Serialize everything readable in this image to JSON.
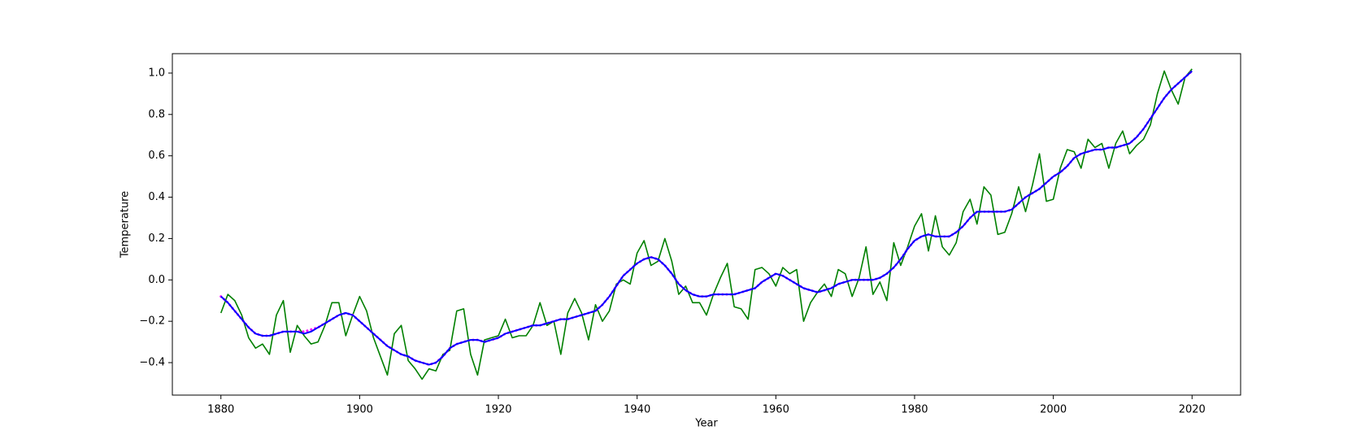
{
  "chart_data": {
    "type": "line",
    "xlabel": "Year",
    "ylabel": "Temperature",
    "x": [
      1880,
      1881,
      1882,
      1883,
      1884,
      1885,
      1886,
      1887,
      1888,
      1889,
      1890,
      1891,
      1892,
      1893,
      1894,
      1895,
      1896,
      1897,
      1898,
      1899,
      1900,
      1901,
      1902,
      1903,
      1904,
      1905,
      1906,
      1907,
      1908,
      1909,
      1910,
      1911,
      1912,
      1913,
      1914,
      1915,
      1916,
      1917,
      1918,
      1919,
      1920,
      1921,
      1922,
      1923,
      1924,
      1925,
      1926,
      1927,
      1928,
      1929,
      1930,
      1931,
      1932,
      1933,
      1934,
      1935,
      1936,
      1937,
      1938,
      1939,
      1940,
      1941,
      1942,
      1943,
      1944,
      1945,
      1946,
      1947,
      1948,
      1949,
      1950,
      1951,
      1952,
      1953,
      1954,
      1955,
      1956,
      1957,
      1958,
      1959,
      1960,
      1961,
      1962,
      1963,
      1964,
      1965,
      1966,
      1967,
      1968,
      1969,
      1970,
      1971,
      1972,
      1973,
      1974,
      1975,
      1976,
      1977,
      1978,
      1979,
      1980,
      1981,
      1982,
      1983,
      1984,
      1985,
      1986,
      1987,
      1988,
      1989,
      1990,
      1991,
      1992,
      1993,
      1994,
      1995,
      1996,
      1997,
      1998,
      1999,
      2000,
      2001,
      2002,
      2003,
      2004,
      2005,
      2006,
      2007,
      2008,
      2009,
      2010,
      2011,
      2012,
      2013,
      2014,
      2015,
      2016,
      2017,
      2018,
      2019,
      2020
    ],
    "series": [
      {
        "color": "#008000",
        "style": "solid",
        "values": [
          -0.16,
          -0.07,
          -0.1,
          -0.17,
          -0.28,
          -0.33,
          -0.31,
          -0.36,
          -0.17,
          -0.1,
          -0.35,
          -0.22,
          -0.27,
          -0.31,
          -0.3,
          -0.22,
          -0.11,
          -0.11,
          -0.27,
          -0.17,
          -0.08,
          -0.15,
          -0.28,
          -0.37,
          -0.46,
          -0.26,
          -0.22,
          -0.39,
          -0.43,
          -0.48,
          -0.43,
          -0.44,
          -0.36,
          -0.34,
          -0.15,
          -0.14,
          -0.36,
          -0.46,
          -0.29,
          -0.28,
          -0.27,
          -0.19,
          -0.28,
          -0.27,
          -0.27,
          -0.22,
          -0.11,
          -0.22,
          -0.2,
          -0.36,
          -0.16,
          -0.09,
          -0.16,
          -0.29,
          -0.12,
          -0.2,
          -0.15,
          -0.02,
          0.0,
          -0.02,
          0.13,
          0.19,
          0.07,
          0.09,
          0.2,
          0.09,
          -0.07,
          -0.03,
          -0.11,
          -0.11,
          -0.17,
          -0.07,
          0.01,
          0.08,
          -0.13,
          -0.14,
          -0.19,
          0.05,
          0.06,
          0.03,
          -0.03,
          0.06,
          0.03,
          0.05,
          -0.2,
          -0.11,
          -0.06,
          -0.02,
          -0.08,
          0.05,
          0.03,
          -0.08,
          0.01,
          0.16,
          -0.07,
          -0.01,
          -0.1,
          0.18,
          0.07,
          0.16,
          0.26,
          0.32,
          0.14,
          0.31,
          0.16,
          0.12,
          0.18,
          0.33,
          0.39,
          0.27,
          0.45,
          0.41,
          0.22,
          0.23,
          0.32,
          0.45,
          0.33,
          0.46,
          0.61,
          0.38,
          0.39,
          0.54,
          0.63,
          0.62,
          0.54,
          0.68,
          0.64,
          0.66,
          0.54,
          0.66,
          0.72,
          0.61,
          0.65,
          0.68,
          0.75,
          0.9,
          1.01,
          0.92,
          0.85,
          0.98,
          1.02
        ]
      },
      {
        "color": "#ff00ff",
        "style": "dotted",
        "values": [
          -0.08,
          -0.11,
          -0.15,
          -0.19,
          -0.23,
          -0.26,
          -0.27,
          -0.27,
          -0.26,
          -0.25,
          -0.25,
          -0.25,
          -0.25,
          -0.24,
          -0.23,
          -0.21,
          -0.19,
          -0.17,
          -0.16,
          -0.17,
          -0.2,
          -0.23,
          -0.26,
          -0.29,
          -0.32,
          -0.34,
          -0.36,
          -0.37,
          -0.39,
          -0.4,
          -0.41,
          -0.4,
          -0.37,
          -0.33,
          -0.31,
          -0.3,
          -0.29,
          -0.29,
          -0.3,
          -0.29,
          -0.28,
          -0.26,
          -0.25,
          -0.24,
          -0.23,
          -0.22,
          -0.22,
          -0.21,
          -0.2,
          -0.19,
          -0.19,
          -0.18,
          -0.17,
          -0.16,
          -0.15,
          -0.12,
          -0.08,
          -0.03,
          0.02,
          0.05,
          0.08,
          0.1,
          0.11,
          0.1,
          0.07,
          0.03,
          -0.02,
          -0.05,
          -0.07,
          -0.08,
          -0.08,
          -0.07,
          -0.07,
          -0.07,
          -0.07,
          -0.06,
          -0.05,
          -0.04,
          -0.01,
          0.01,
          0.03,
          0.02,
          0.0,
          -0.02,
          -0.04,
          -0.05,
          -0.06,
          -0.05,
          -0.04,
          -0.02,
          -0.01,
          0.0,
          0.0,
          0.0,
          0.0,
          0.01,
          0.03,
          0.06,
          0.1,
          0.15,
          0.19,
          0.21,
          0.22,
          0.21,
          0.21,
          0.21,
          0.23,
          0.26,
          0.3,
          0.33,
          0.33,
          0.33,
          0.33,
          0.33,
          0.34,
          0.37,
          0.4,
          0.42,
          0.44,
          0.47,
          0.5,
          0.52,
          0.55,
          0.59,
          0.61,
          0.62,
          0.63,
          0.63,
          0.64,
          0.64,
          0.65,
          0.66,
          0.69,
          0.73,
          0.78,
          0.83,
          0.88,
          0.92,
          0.95,
          0.98,
          1.01
        ]
      },
      {
        "color": "#0000ff",
        "style": "solid",
        "values": [
          -0.08,
          -0.11,
          -0.15,
          -0.19,
          -0.23,
          -0.26,
          -0.27,
          -0.27,
          -0.26,
          -0.25,
          -0.25,
          -0.25,
          -0.26,
          -0.25,
          -0.23,
          -0.21,
          -0.19,
          -0.17,
          -0.16,
          -0.17,
          -0.2,
          -0.23,
          -0.26,
          -0.29,
          -0.32,
          -0.34,
          -0.36,
          -0.37,
          -0.39,
          -0.4,
          -0.41,
          -0.4,
          -0.37,
          -0.33,
          -0.31,
          -0.3,
          -0.29,
          -0.29,
          -0.3,
          -0.29,
          -0.28,
          -0.26,
          -0.25,
          -0.24,
          -0.23,
          -0.22,
          -0.22,
          -0.21,
          -0.2,
          -0.19,
          -0.19,
          -0.18,
          -0.17,
          -0.16,
          -0.15,
          -0.12,
          -0.08,
          -0.03,
          0.02,
          0.05,
          0.08,
          0.1,
          0.11,
          0.1,
          0.07,
          0.03,
          -0.02,
          -0.05,
          -0.07,
          -0.08,
          -0.08,
          -0.07,
          -0.07,
          -0.07,
          -0.07,
          -0.06,
          -0.05,
          -0.04,
          -0.01,
          0.01,
          0.03,
          0.02,
          0.0,
          -0.02,
          -0.04,
          -0.05,
          -0.06,
          -0.05,
          -0.04,
          -0.02,
          -0.01,
          0.0,
          0.0,
          0.0,
          0.0,
          0.01,
          0.03,
          0.06,
          0.1,
          0.15,
          0.19,
          0.21,
          0.22,
          0.21,
          0.21,
          0.21,
          0.23,
          0.26,
          0.3,
          0.33,
          0.33,
          0.33,
          0.33,
          0.33,
          0.34,
          0.37,
          0.4,
          0.42,
          0.44,
          0.47,
          0.5,
          0.52,
          0.55,
          0.59,
          0.61,
          0.62,
          0.63,
          0.63,
          0.64,
          0.64,
          0.65,
          0.66,
          0.69,
          0.73,
          0.78,
          0.83,
          0.88,
          0.92,
          0.95,
          0.98,
          1.01
        ]
      }
    ],
    "xlim": [
      1873,
      2027
    ],
    "xticks": [
      1880,
      1900,
      1920,
      1940,
      1960,
      1980,
      2000,
      2020
    ],
    "ylim": [
      -0.557,
      1.094
    ],
    "yticks": [
      {
        "value": -0.4,
        "label": "−0.4"
      },
      {
        "value": -0.2,
        "label": "−0.2"
      },
      {
        "value": 0,
        "label": "0.0"
      },
      {
        "value": 0.2,
        "label": "0.2"
      },
      {
        "value": 0.4,
        "label": "0.4"
      },
      {
        "value": 0.6,
        "label": "0.6"
      },
      {
        "value": 0.8,
        "label": "0.8"
      },
      {
        "value": 1,
        "label": "1.0"
      }
    ],
    "grid": false
  }
}
